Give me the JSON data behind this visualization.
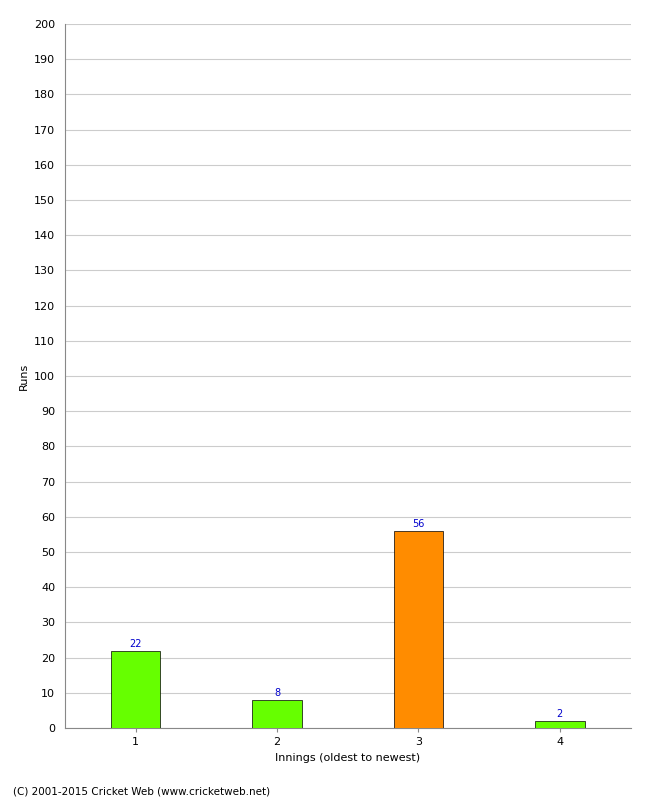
{
  "categories": [
    "1",
    "2",
    "3",
    "4"
  ],
  "values": [
    22,
    8,
    56,
    2
  ],
  "bar_colors": [
    "#66ff00",
    "#66ff00",
    "#ff8c00",
    "#66ff00"
  ],
  "ylabel": "Runs",
  "xlabel": "Innings (oldest to newest)",
  "ylim": [
    0,
    200
  ],
  "yticks": [
    0,
    10,
    20,
    30,
    40,
    50,
    60,
    70,
    80,
    90,
    100,
    110,
    120,
    130,
    140,
    150,
    160,
    170,
    180,
    190,
    200
  ],
  "label_color": "#0000cc",
  "label_fontsize": 7,
  "axis_fontsize": 8,
  "tick_fontsize": 8,
  "footer": "(C) 2001-2015 Cricket Web (www.cricketweb.net)",
  "footer_fontsize": 7.5,
  "background_color": "#ffffff",
  "grid_color": "#cccccc",
  "bar_width": 0.35,
  "figsize": [
    6.5,
    8.0
  ],
  "dpi": 100
}
